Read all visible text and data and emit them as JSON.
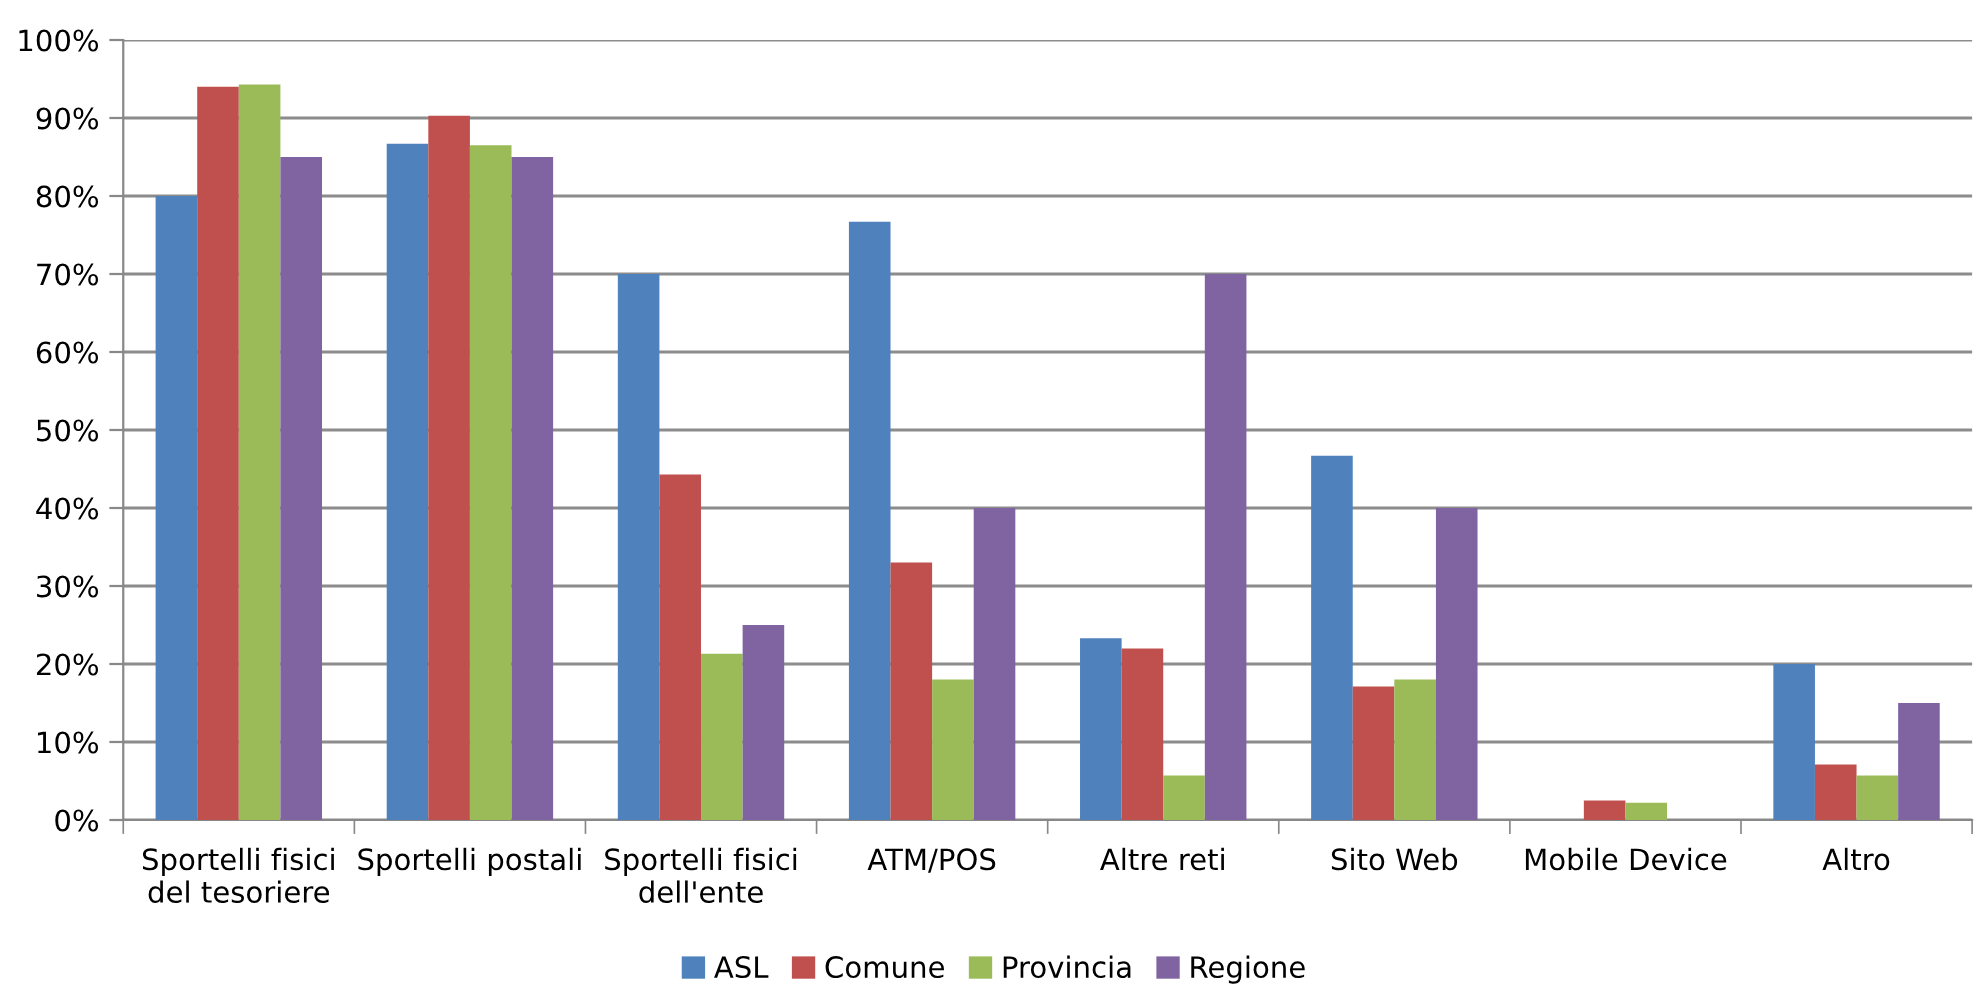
{
  "chart_data": {
    "type": "bar",
    "categories": [
      "Sportelli fisici\ndel tesoriere",
      "Sportelli postali",
      "Sportelli fisici\ndell'ente",
      "ATM/POS",
      "Altre reti",
      "Sito Web",
      "Mobile Device",
      "Altro"
    ],
    "series": [
      {
        "name": "ASL",
        "color": "#4f81bd",
        "values": [
          80,
          86.7,
          70,
          76.7,
          23.3,
          46.7,
          0,
          20
        ]
      },
      {
        "name": "Comune",
        "color": "#c0504d",
        "values": [
          94,
          90.3,
          44.3,
          33,
          22,
          17.1,
          2.5,
          7.1
        ]
      },
      {
        "name": "Provincia",
        "color": "#9bbb59",
        "values": [
          94.3,
          86.5,
          21.3,
          18,
          5.7,
          18,
          2.2,
          5.7
        ]
      },
      {
        "name": "Regione",
        "color": "#8064a2",
        "values": [
          85,
          85,
          25,
          40,
          70,
          40,
          0,
          15
        ]
      }
    ],
    "ylim": [
      0,
      100
    ],
    "yticks": [
      {
        "value": 0,
        "label": "0%"
      },
      {
        "value": 10,
        "label": "10%"
      },
      {
        "value": 20,
        "label": "20%"
      },
      {
        "value": 30,
        "label": "30%"
      },
      {
        "value": 40,
        "label": "40%"
      },
      {
        "value": 50,
        "label": "50%"
      },
      {
        "value": 60,
        "label": "60%"
      },
      {
        "value": 70,
        "label": "70%"
      },
      {
        "value": 80,
        "label": "80%"
      },
      {
        "value": 90,
        "label": "90%"
      },
      {
        "value": 100,
        "label": "100%"
      }
    ],
    "grid": "y",
    "legend": "bottom"
  }
}
